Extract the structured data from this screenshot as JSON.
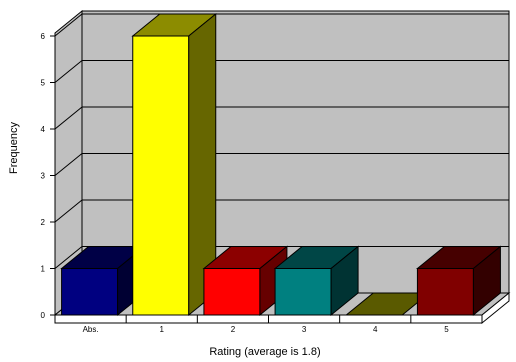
{
  "chart_data": {
    "type": "bar",
    "title": "",
    "xlabel": "Rating  (average is  1.8)",
    "ylabel": "Frequency",
    "categories": [
      "Abs.",
      "1",
      "2",
      "3",
      "4",
      "5"
    ],
    "values": [
      1,
      6,
      1,
      1,
      0,
      1
    ],
    "bar_colors": [
      "#000080",
      "#ffff00",
      "#ff0000",
      "#008080",
      "#5a5a00",
      "#800000"
    ],
    "ylim": [
      0,
      6
    ],
    "yticks": [
      "0",
      "1",
      "2",
      "3",
      "4",
      "5",
      "6"
    ],
    "grid": true,
    "style": "3d",
    "wall_color": "#c0c0c0"
  }
}
